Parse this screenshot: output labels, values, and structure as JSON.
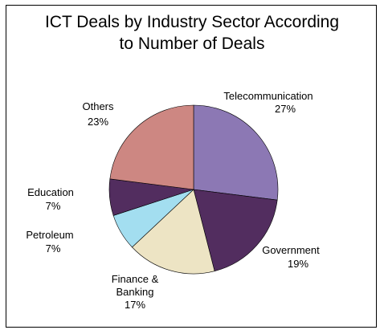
{
  "chart_data": {
    "type": "pie",
    "title_lines": [
      "ICT Deals by Industry Sector According",
      "to Number of Deals"
    ],
    "slices": [
      {
        "name": "Telecommunication",
        "value": 27,
        "pct_label": "27%",
        "color": "#8c78b4"
      },
      {
        "name": "Government",
        "value": 19,
        "pct_label": "19%",
        "color": "#522d5f"
      },
      {
        "name": "Finance & Banking",
        "name_lines": [
          "Finance &",
          "Banking"
        ],
        "value": 17,
        "pct_label": "17%",
        "color": "#ede4c4"
      },
      {
        "name": "Petroleum",
        "value": 7,
        "pct_label": "7%",
        "color": "#a3def0"
      },
      {
        "name": "Education",
        "value": 7,
        "pct_label": "7%",
        "color": "#522d5f"
      },
      {
        "name": "Others",
        "value": 23,
        "pct_label": "23%",
        "color": "#cd8782"
      }
    ],
    "start_angle": "12 o'clock",
    "direction": "clockwise",
    "legend": "none"
  }
}
